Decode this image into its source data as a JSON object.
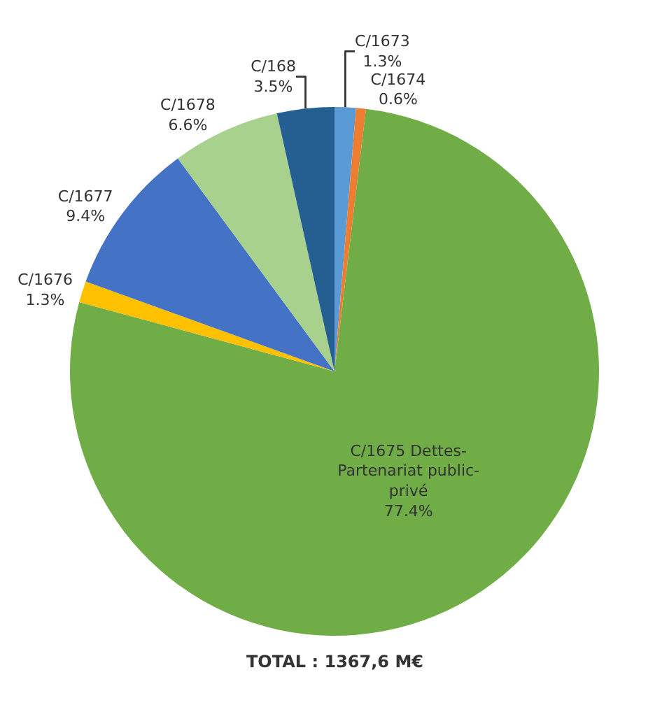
{
  "chart_data": {
    "type": "pie",
    "categories": [
      "C/1673",
      "C/1674",
      "C/1675 Dettes-Partenariat public-privé",
      "C/1676",
      "C/1677",
      "C/1678",
      "C/168"
    ],
    "values": [
      1.3,
      0.6,
      77.4,
      1.3,
      9.4,
      6.6,
      3.5
    ],
    "value_labels": [
      "1.3%",
      "0.6%",
      "77.4%",
      "1.3%",
      "9.4%",
      "6.6%",
      "3.5%"
    ],
    "colors": [
      "#5b9bd5",
      "#ed7d31",
      "#70ad47",
      "#ffc000",
      "#4472c4",
      "#a9d18e",
      "#255e91"
    ],
    "annotations": [
      "TOTAL : 1367,6 M€"
    ],
    "legend": false
  }
}
